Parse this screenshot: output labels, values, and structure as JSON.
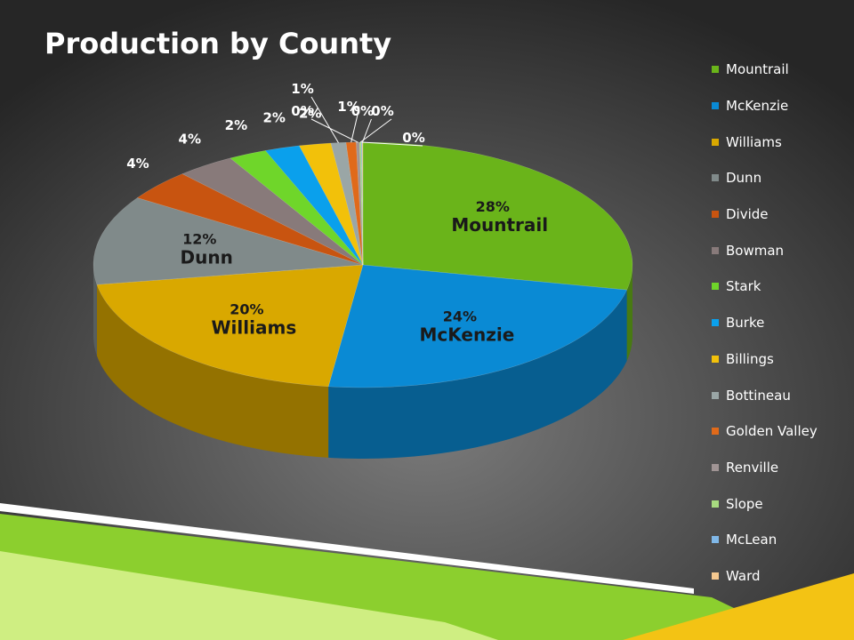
{
  "slide": {
    "background": {
      "center": "#7c7c7c",
      "edge": "#262626"
    },
    "decor_colors": {
      "green": "#8ccf2e",
      "light_green": "#cfee82",
      "yellow": "#f3c314",
      "stripe": "#ffffff"
    }
  },
  "chart_data": {
    "type": "pie",
    "title": "Production by County",
    "start_angle_deg": 0,
    "direction": "clockwise",
    "legend_position": "right",
    "name_labels_shown_for": [
      "Mountrail",
      "McKenzie",
      "Williams",
      "Dunn"
    ],
    "categories": [
      "Mountrail",
      "McKenzie",
      "Williams",
      "Dunn",
      "Divide",
      "Bowman",
      "Stark",
      "Burke",
      "Billings",
      "Bottineau",
      "Golden Valley",
      "Renville",
      "Slope",
      "McLean",
      "Ward"
    ],
    "values": [
      28.3,
      23.8,
      20.4,
      11.8,
      4.1,
      3.5,
      2.3,
      2.1,
      1.9,
      0.9,
      0.6,
      0.2,
      0.1,
      0.05,
      0.05
    ],
    "data_labels": [
      "28%",
      "24%",
      "20%",
      "12%",
      "4%",
      "4%",
      "2%",
      "2%",
      "2%",
      "1%",
      "1%",
      "0%",
      "0%",
      "0%",
      "0%"
    ],
    "colors": [
      "#6ab41a",
      "#0a8ad4",
      "#d9a800",
      "#808a8a",
      "#c85410",
      "#887a7a",
      "#6fd62a",
      "#0aa0ec",
      "#f2c10a",
      "#9aa6a6",
      "#e06a1a",
      "#a09494",
      "#a8dc80",
      "#80b8e8",
      "#f4c890"
    ]
  }
}
